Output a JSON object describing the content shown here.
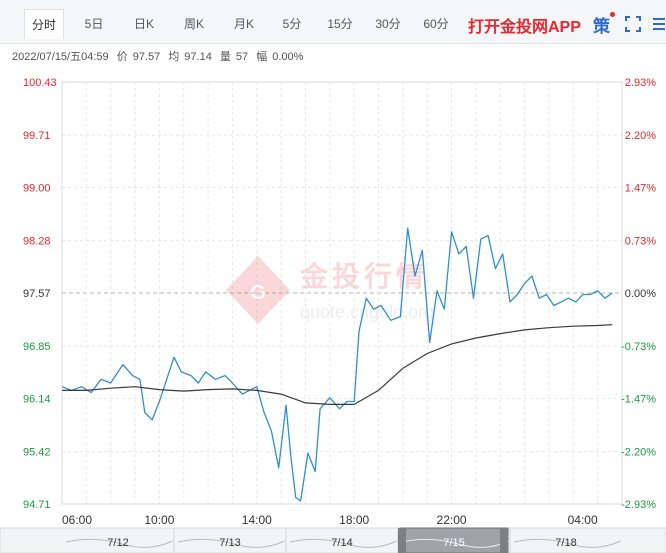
{
  "tabs": [
    "分时",
    "5日",
    "日K",
    "周K",
    "月K",
    "5分",
    "15分",
    "30分",
    "60分"
  ],
  "promo_label": "打开金投网APP",
  "strategy_label": "策",
  "info": {
    "datetime": "2022/07/15/五04:59",
    "price_label": "价",
    "price": "97.57",
    "avg_label": "均",
    "avg": "97.14",
    "vol_label": "量",
    "vol": "57",
    "change_label": "幅",
    "change": "0.00%"
  },
  "watermark": {
    "brand": "金投行情",
    "url": "quote.cngold.org"
  },
  "icons": [
    "fullscreen-icon",
    "menu-icon"
  ],
  "chart_data": {
    "type": "line",
    "y_ticks_left": [
      "100.43",
      "99.71",
      "99.00",
      "98.28",
      "97.57",
      "96.85",
      "96.14",
      "95.42",
      "94.71"
    ],
    "y_ticks_right": [
      "2.93%",
      "2.20%",
      "1.47%",
      "0.73%",
      "0.00%",
      "-0.73%",
      "-1.47%",
      "-2.20%",
      "-2.93%"
    ],
    "ylim": [
      94.71,
      100.43
    ],
    "prev_close": 97.57,
    "x_ticks": [
      "06:00",
      "10:00",
      "14:00",
      "18:00",
      "22:00",
      "04:00"
    ],
    "x_tick_hours": [
      0,
      4,
      8,
      12,
      16,
      22
    ],
    "x_range_hours": [
      0,
      23
    ],
    "navigator_dates": [
      "7/12",
      "7/13",
      "7/14",
      "7/15",
      "7/18"
    ],
    "navigator_selected": "7/15",
    "colors": {
      "up": "#e8272f",
      "down": "#1a9c3e",
      "neutral": "#333333",
      "price_line": "#2f8fd0",
      "avg_line": "#3a3a3a",
      "grid": "#e6e8ec"
    },
    "series": [
      {
        "role": "price",
        "points": [
          [
            0,
            96.3
          ],
          [
            0.4,
            96.25
          ],
          [
            0.8,
            96.3
          ],
          [
            1.2,
            96.22
          ],
          [
            1.6,
            96.4
          ],
          [
            2,
            96.35
          ],
          [
            2.5,
            96.6
          ],
          [
            2.9,
            96.45
          ],
          [
            3.2,
            96.4
          ],
          [
            3.4,
            95.95
          ],
          [
            3.7,
            95.85
          ],
          [
            4,
            96.1
          ],
          [
            4.3,
            96.4
          ],
          [
            4.6,
            96.7
          ],
          [
            4.9,
            96.5
          ],
          [
            5.3,
            96.45
          ],
          [
            5.6,
            96.35
          ],
          [
            5.9,
            96.5
          ],
          [
            6.3,
            96.4
          ],
          [
            6.7,
            96.45
          ],
          [
            7,
            96.35
          ],
          [
            7.4,
            96.2
          ],
          [
            7.7,
            96.25
          ],
          [
            8,
            96.3
          ],
          [
            8.3,
            95.95
          ],
          [
            8.6,
            95.7
          ],
          [
            8.9,
            95.2
          ],
          [
            9.2,
            96.05
          ],
          [
            9.4,
            95.35
          ],
          [
            9.6,
            94.8
          ],
          [
            9.8,
            94.75
          ],
          [
            10.1,
            95.4
          ],
          [
            10.4,
            95.15
          ],
          [
            10.6,
            96.0
          ],
          [
            11,
            96.15
          ],
          [
            11.4,
            96.0
          ],
          [
            11.7,
            96.1
          ],
          [
            12,
            96.1
          ],
          [
            12.2,
            97.05
          ],
          [
            12.5,
            97.5
          ],
          [
            12.8,
            97.35
          ],
          [
            13.1,
            97.4
          ],
          [
            13.5,
            97.2
          ],
          [
            13.9,
            97.25
          ],
          [
            14.2,
            98.45
          ],
          [
            14.5,
            97.8
          ],
          [
            14.8,
            98.15
          ],
          [
            15.1,
            96.9
          ],
          [
            15.4,
            97.6
          ],
          [
            15.7,
            97.35
          ],
          [
            16,
            98.4
          ],
          [
            16.3,
            98.1
          ],
          [
            16.6,
            98.2
          ],
          [
            16.9,
            97.5
          ],
          [
            17.2,
            98.3
          ],
          [
            17.5,
            98.35
          ],
          [
            17.8,
            97.9
          ],
          [
            18.1,
            98.1
          ],
          [
            18.4,
            97.45
          ],
          [
            18.7,
            97.55
          ],
          [
            19,
            97.7
          ],
          [
            19.3,
            97.8
          ],
          [
            19.6,
            97.5
          ],
          [
            19.9,
            97.55
          ],
          [
            20.2,
            97.4
          ],
          [
            20.5,
            97.45
          ],
          [
            20.8,
            97.5
          ],
          [
            21.1,
            97.45
          ],
          [
            21.4,
            97.55
          ],
          [
            21.7,
            97.55
          ],
          [
            22,
            97.6
          ],
          [
            22.3,
            97.5
          ],
          [
            22.6,
            97.57
          ]
        ]
      },
      {
        "role": "average",
        "points": [
          [
            0,
            96.25
          ],
          [
            1,
            96.25
          ],
          [
            2,
            96.28
          ],
          [
            3,
            96.3
          ],
          [
            4,
            96.26
          ],
          [
            5,
            96.24
          ],
          [
            6,
            96.26
          ],
          [
            7,
            96.27
          ],
          [
            8,
            96.25
          ],
          [
            9,
            96.2
          ],
          [
            10,
            96.08
          ],
          [
            11,
            96.06
          ],
          [
            12,
            96.06
          ],
          [
            13,
            96.25
          ],
          [
            14,
            96.55
          ],
          [
            15,
            96.75
          ],
          [
            16,
            96.88
          ],
          [
            17,
            96.96
          ],
          [
            18,
            97.02
          ],
          [
            19,
            97.07
          ],
          [
            20,
            97.1
          ],
          [
            21,
            97.12
          ],
          [
            22,
            97.13
          ],
          [
            22.6,
            97.14
          ]
        ]
      }
    ]
  }
}
